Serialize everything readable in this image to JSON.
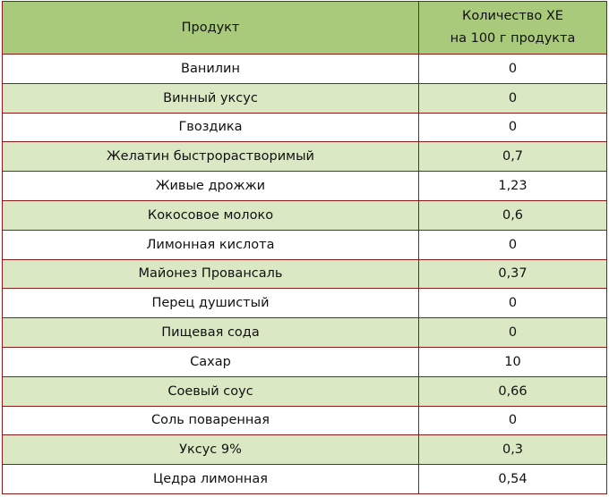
{
  "table": {
    "headers": {
      "product": "Продукт",
      "xe_line1": "Количество ХЕ",
      "xe_line2": "на 100 г продукта"
    },
    "rows": [
      {
        "product": "Ванилин",
        "xe": "0"
      },
      {
        "product": "Винный уксус",
        "xe": "0"
      },
      {
        "product": "Гвоздика",
        "xe": "0"
      },
      {
        "product": "Желатин быстрорастворимый",
        "xe": "0,7"
      },
      {
        "product": "Живые дрожжи",
        "xe": "1,23"
      },
      {
        "product": "Кокосовое молоко",
        "xe": "0,6"
      },
      {
        "product": "Лимонная кислота",
        "xe": "0"
      },
      {
        "product": "Майонез Провансаль",
        "xe": "0,37"
      },
      {
        "product": "Перец душистый",
        "xe": "0"
      },
      {
        "product": "Пищевая сода",
        "xe": "0"
      },
      {
        "product": "Сахар",
        "xe": "10"
      },
      {
        "product": "Соевый соус",
        "xe": "0,66"
      },
      {
        "product": "Соль поваренная",
        "xe": "0"
      },
      {
        "product": "Уксус 9%",
        "xe": "0,3"
      },
      {
        "product": "Цедра лимонная",
        "xe": "0,54"
      }
    ]
  },
  "colors": {
    "header_bg": "#a9c97b",
    "stripe_bg": "#dbe8c4",
    "border": "#8b1a1a"
  }
}
